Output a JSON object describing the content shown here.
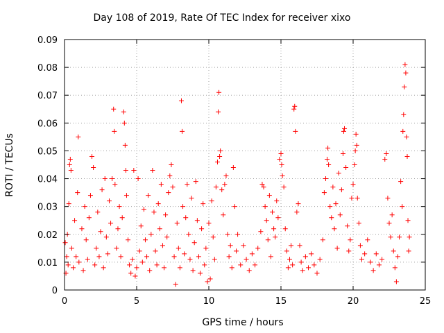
{
  "chart_data": {
    "type": "scatter",
    "title": "Day 108 of 2019, Rate Of TEC Index for receiver xixo",
    "xlabel": "GPS time / hours",
    "ylabel": "ROTI / TECUs",
    "xlim": [
      0,
      25
    ],
    "ylim": [
      0,
      0.09
    ],
    "xticks": [
      0,
      5,
      10,
      15,
      20,
      25
    ],
    "xtick_labels": [
      "0",
      "5",
      "10",
      "15",
      "20",
      "25"
    ],
    "yticks": [
      0,
      0.01,
      0.02,
      0.03,
      0.04,
      0.05,
      0.06,
      0.07,
      0.08,
      0.09
    ],
    "ytick_labels": [
      "0",
      "0.01",
      "0.02",
      "0.03",
      "0.04",
      "0.05",
      "0.06",
      "0.07",
      "0.08",
      "0.09"
    ],
    "grid": true,
    "marker": "plus",
    "color": "#ff0000",
    "series": [
      {
        "name": "ROTI",
        "points": [
          [
            0.05,
            0.017
          ],
          [
            0.1,
            0.006
          ],
          [
            0.15,
            0.012
          ],
          [
            0.2,
            0.02
          ],
          [
            0.25,
            0.009
          ],
          [
            0.3,
            0.031
          ],
          [
            0.35,
            0.045
          ],
          [
            0.4,
            0.047
          ],
          [
            0.45,
            0.043
          ],
          [
            0.5,
            0.015
          ],
          [
            0.6,
            0.008
          ],
          [
            0.7,
            0.025
          ],
          [
            0.8,
            0.012
          ],
          [
            0.9,
            0.035
          ],
          [
            0.95,
            0.055
          ],
          [
            1.0,
            0.01
          ],
          [
            1.2,
            0.022
          ],
          [
            1.3,
            0.007
          ],
          [
            1.4,
            0.03
          ],
          [
            1.5,
            0.018
          ],
          [
            1.6,
            0.011
          ],
          [
            1.7,
            0.026
          ],
          [
            1.8,
            0.034
          ],
          [
            1.9,
            0.048
          ],
          [
            2.0,
            0.044
          ],
          [
            2.1,
            0.009
          ],
          [
            2.2,
            0.015
          ],
          [
            2.3,
            0.028
          ],
          [
            2.4,
            0.012
          ],
          [
            2.5,
            0.021
          ],
          [
            2.6,
            0.036
          ],
          [
            2.7,
            0.008
          ],
          [
            2.8,
            0.04
          ],
          [
            2.9,
            0.019
          ],
          [
            3.0,
            0.013
          ],
          [
            3.1,
            0.032
          ],
          [
            3.2,
            0.024
          ],
          [
            3.3,
            0.04
          ],
          [
            3.4,
            0.065
          ],
          [
            3.45,
            0.057
          ],
          [
            3.5,
            0.038
          ],
          [
            3.6,
            0.015
          ],
          [
            3.7,
            0.022
          ],
          [
            3.8,
            0.03
          ],
          [
            3.9,
            0.012
          ],
          [
            4.0,
            0.026
          ],
          [
            4.1,
            0.064
          ],
          [
            4.15,
            0.06
          ],
          [
            4.2,
            0.052
          ],
          [
            4.25,
            0.043
          ],
          [
            4.3,
            0.034
          ],
          [
            4.4,
            0.018
          ],
          [
            4.5,
            0.009
          ],
          [
            4.6,
            0.006
          ],
          [
            4.7,
            0.011
          ],
          [
            4.8,
            0.043
          ],
          [
            4.9,
            0.005
          ],
          [
            5.0,
            0.008
          ],
          [
            5.1,
            0.04
          ],
          [
            5.2,
            0.014
          ],
          [
            5.3,
            0.023
          ],
          [
            5.4,
            0.01
          ],
          [
            5.5,
            0.029
          ],
          [
            5.6,
            0.018
          ],
          [
            5.7,
            0.012
          ],
          [
            5.8,
            0.034
          ],
          [
            5.9,
            0.007
          ],
          [
            6.0,
            0.02
          ],
          [
            6.1,
            0.043
          ],
          [
            6.2,
            0.028
          ],
          [
            6.3,
            0.014
          ],
          [
            6.4,
            0.009
          ],
          [
            6.5,
            0.031
          ],
          [
            6.6,
            0.022
          ],
          [
            6.7,
            0.038
          ],
          [
            6.8,
            0.016
          ],
          [
            6.9,
            0.008
          ],
          [
            7.0,
            0.027
          ],
          [
            7.1,
            0.019
          ],
          [
            7.2,
            0.035
          ],
          [
            7.3,
            0.041
          ],
          [
            7.4,
            0.045
          ],
          [
            7.5,
            0.037
          ],
          [
            7.6,
            0.012
          ],
          [
            7.7,
            0.002
          ],
          [
            7.8,
            0.024
          ],
          [
            7.9,
            0.015
          ],
          [
            8.0,
            0.008
          ],
          [
            8.1,
            0.068
          ],
          [
            8.15,
            0.057
          ],
          [
            8.2,
            0.03
          ],
          [
            8.3,
            0.013
          ],
          [
            8.4,
            0.026
          ],
          [
            8.5,
            0.038
          ],
          [
            8.6,
            0.02
          ],
          [
            8.7,
            0.011
          ],
          [
            8.8,
            0.033
          ],
          [
            8.9,
            0.007
          ],
          [
            9.0,
            0.017
          ],
          [
            9.1,
            0.039
          ],
          [
            9.2,
            0.025
          ],
          [
            9.3,
            0.012
          ],
          [
            9.4,
            0.006
          ],
          [
            9.5,
            0.022
          ],
          [
            9.6,
            0.031
          ],
          [
            9.7,
            0.009
          ],
          [
            9.8,
            0.015
          ],
          [
            9.9,
            0.003
          ],
          [
            10.0,
            0.024
          ],
          [
            10.1,
            0.004
          ],
          [
            10.2,
            0.032
          ],
          [
            10.3,
            0.019
          ],
          [
            10.4,
            0.011
          ],
          [
            10.5,
            0.037
          ],
          [
            10.6,
            0.046
          ],
          [
            10.65,
            0.064
          ],
          [
            10.7,
            0.071
          ],
          [
            10.75,
            0.048
          ],
          [
            10.8,
            0.05
          ],
          [
            10.9,
            0.036
          ],
          [
            11.0,
            0.027
          ],
          [
            11.1,
            0.038
          ],
          [
            11.2,
            0.041
          ],
          [
            11.3,
            0.02
          ],
          [
            11.4,
            0.012
          ],
          [
            11.5,
            0.016
          ],
          [
            11.6,
            0.008
          ],
          [
            11.7,
            0.044
          ],
          [
            11.8,
            0.03
          ],
          [
            11.9,
            0.014
          ],
          [
            12.0,
            0.02
          ],
          [
            12.2,
            0.009
          ],
          [
            12.4,
            0.016
          ],
          [
            12.6,
            0.011
          ],
          [
            12.8,
            0.007
          ],
          [
            13.0,
            0.013
          ],
          [
            13.2,
            0.009
          ],
          [
            13.4,
            0.015
          ],
          [
            13.6,
            0.021
          ],
          [
            13.7,
            0.038
          ],
          [
            13.8,
            0.037
          ],
          [
            13.9,
            0.03
          ],
          [
            14.0,
            0.025
          ],
          [
            14.1,
            0.018
          ],
          [
            14.2,
            0.034
          ],
          [
            14.3,
            0.012
          ],
          [
            14.4,
            0.028
          ],
          [
            14.5,
            0.022
          ],
          [
            14.6,
            0.019
          ],
          [
            14.7,
            0.032
          ],
          [
            14.8,
            0.026
          ],
          [
            14.9,
            0.047
          ],
          [
            15.0,
            0.049
          ],
          [
            15.05,
            0.045
          ],
          [
            15.1,
            0.041
          ],
          [
            15.2,
            0.037
          ],
          [
            15.3,
            0.022
          ],
          [
            15.4,
            0.014
          ],
          [
            15.5,
            0.008
          ],
          [
            15.6,
            0.011
          ],
          [
            15.7,
            0.016
          ],
          [
            15.8,
            0.009
          ],
          [
            15.9,
            0.065
          ],
          [
            15.95,
            0.066
          ],
          [
            16.0,
            0.057
          ],
          [
            16.1,
            0.028
          ],
          [
            16.2,
            0.031
          ],
          [
            16.3,
            0.016
          ],
          [
            16.4,
            0.01
          ],
          [
            16.5,
            0.007
          ],
          [
            16.7,
            0.012
          ],
          [
            16.9,
            0.008
          ],
          [
            17.1,
            0.013
          ],
          [
            17.3,
            0.009
          ],
          [
            17.5,
            0.006
          ],
          [
            17.7,
            0.011
          ],
          [
            17.9,
            0.018
          ],
          [
            18.0,
            0.035
          ],
          [
            18.1,
            0.04
          ],
          [
            18.2,
            0.047
          ],
          [
            18.25,
            0.051
          ],
          [
            18.3,
            0.045
          ],
          [
            18.4,
            0.03
          ],
          [
            18.5,
            0.026
          ],
          [
            18.6,
            0.037
          ],
          [
            18.7,
            0.022
          ],
          [
            18.8,
            0.031
          ],
          [
            18.9,
            0.015
          ],
          [
            19.0,
            0.042
          ],
          [
            19.1,
            0.027
          ],
          [
            19.2,
            0.036
          ],
          [
            19.3,
            0.049
          ],
          [
            19.35,
            0.057
          ],
          [
            19.4,
            0.058
          ],
          [
            19.5,
            0.044
          ],
          [
            19.6,
            0.023
          ],
          [
            19.7,
            0.014
          ],
          [
            19.8,
            0.018
          ],
          [
            19.9,
            0.033
          ],
          [
            20.0,
            0.038
          ],
          [
            20.1,
            0.045
          ],
          [
            20.15,
            0.05
          ],
          [
            20.2,
            0.056
          ],
          [
            20.25,
            0.052
          ],
          [
            20.3,
            0.033
          ],
          [
            20.4,
            0.024
          ],
          [
            20.5,
            0.016
          ],
          [
            20.6,
            0.011
          ],
          [
            20.8,
            0.013
          ],
          [
            21.0,
            0.018
          ],
          [
            21.2,
            0.01
          ],
          [
            21.4,
            0.007
          ],
          [
            21.6,
            0.013
          ],
          [
            21.8,
            0.009
          ],
          [
            22.0,
            0.011
          ],
          [
            22.2,
            0.047
          ],
          [
            22.3,
            0.049
          ],
          [
            22.4,
            0.033
          ],
          [
            22.5,
            0.024
          ],
          [
            22.6,
            0.019
          ],
          [
            22.7,
            0.027
          ],
          [
            22.8,
            0.014
          ],
          [
            22.9,
            0.008
          ],
          [
            23.0,
            0.003
          ],
          [
            23.1,
            0.012
          ],
          [
            23.2,
            0.019
          ],
          [
            23.3,
            0.039
          ],
          [
            23.4,
            0.03
          ],
          [
            23.45,
            0.057
          ],
          [
            23.5,
            0.063
          ],
          [
            23.55,
            0.073
          ],
          [
            23.6,
            0.081
          ],
          [
            23.65,
            0.078
          ],
          [
            23.7,
            0.055
          ],
          [
            23.75,
            0.048
          ],
          [
            23.8,
            0.025
          ],
          [
            23.85,
            0.014
          ],
          [
            23.9,
            0.019
          ]
        ]
      }
    ]
  }
}
